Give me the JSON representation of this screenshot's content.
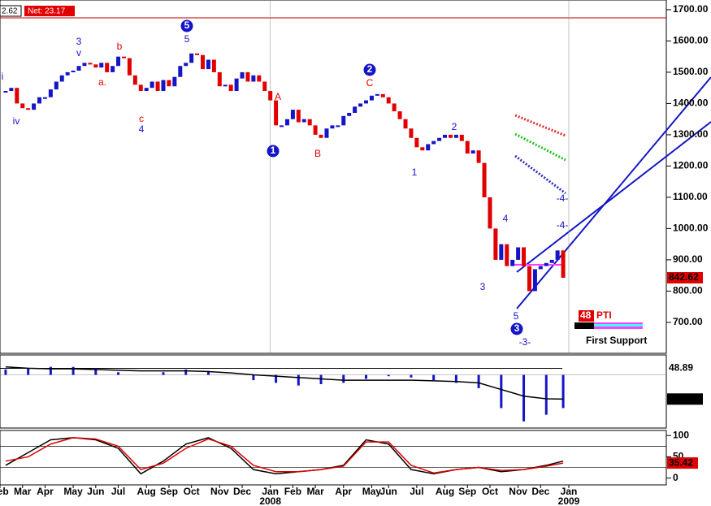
{
  "header": {
    "left": "2.62",
    "net": "Net: 23.17"
  },
  "chart_data": [
    {
      "type": "price-bars",
      "values": [
        1440,
        1450,
        1400,
        1385,
        1380,
        1400,
        1420,
        1420,
        1445,
        1470,
        1490,
        1500,
        1505,
        1520,
        1530,
        1525,
        1515,
        1530,
        1500,
        1520,
        1550,
        1545,
        1490,
        1460,
        1440,
        1450,
        1470,
        1440,
        1475,
        1455,
        1485,
        1520,
        1530,
        1560,
        1555,
        1510,
        1540,
        1500,
        1455,
        1460,
        1440,
        1480,
        1500,
        1470,
        1490,
        1470,
        1440,
        1410,
        1330,
        1330,
        1350,
        1380,
        1340,
        1350,
        1330,
        1300,
        1290,
        1320,
        1330,
        1330,
        1360,
        1370,
        1390,
        1400,
        1410,
        1425,
        1430,
        1420,
        1400,
        1375,
        1350,
        1320,
        1290,
        1260,
        1250,
        1270,
        1280,
        1290,
        1300,
        1290,
        1300,
        1280,
        1240,
        1250,
        1210,
        1100,
        1000,
        900,
        950,
        880,
        900,
        940,
        880,
        800,
        870,
        880,
        890,
        900,
        930,
        842.62
      ],
      "up_color": "#1414c8",
      "down_color": "#e00000",
      "xlim": [
        -1,
        100
      ],
      "ylim": [
        601,
        1731
      ],
      "yticks": [
        {
          "value": 700,
          "label": "700.00"
        },
        {
          "value": 800,
          "label": "800.00"
        },
        {
          "value": 900,
          "label": "900.00"
        },
        {
          "value": 1000,
          "label": "1000.00"
        },
        {
          "value": 1100,
          "label": "1100.00"
        },
        {
          "value": 1200,
          "label": "1200.00"
        },
        {
          "value": 1300,
          "label": "1300.00"
        },
        {
          "value": 1400,
          "label": "1400.00"
        },
        {
          "value": 1500,
          "label": "1500.00"
        },
        {
          "value": 1600,
          "label": "1600.00"
        },
        {
          "value": 1700,
          "label": "1700.00"
        }
      ],
      "xticks": [
        {
          "value": -1,
          "label": "Feb"
        },
        {
          "value": 3,
          "label": "Mar"
        },
        {
          "value": 7,
          "label": "Apr"
        },
        {
          "value": 12,
          "label": "May"
        },
        {
          "value": 16,
          "label": "Jun"
        },
        {
          "value": 20,
          "label": "Jul"
        },
        {
          "value": 25,
          "label": "Aug"
        },
        {
          "value": 29,
          "label": "Sep"
        },
        {
          "value": 33,
          "label": "Oct"
        },
        {
          "value": 38,
          "label": "Nov"
        },
        {
          "value": 42,
          "label": "Dec"
        },
        {
          "value": 47,
          "label": "Jan"
        },
        {
          "value": 51,
          "label": "Feb"
        },
        {
          "value": 55,
          "label": "Mar"
        },
        {
          "value": 60,
          "label": "Apr"
        },
        {
          "value": 65,
          "label": "May"
        },
        {
          "value": 68,
          "label": "Jun"
        },
        {
          "value": 73,
          "label": "Jul"
        },
        {
          "value": 78,
          "label": "Aug"
        },
        {
          "value": 82,
          "label": "Sep"
        },
        {
          "value": 86,
          "label": "Oct"
        },
        {
          "value": 91,
          "label": "Nov"
        },
        {
          "value": 95,
          "label": "Dec"
        },
        {
          "value": 100,
          "label": "Jan"
        }
      ],
      "year_ticks": [
        {
          "value": 47,
          "label": "2008"
        },
        {
          "value": 100,
          "label": "2009"
        }
      ],
      "last_price": 842.62,
      "annotations": [
        "i",
        "iv",
        "3",
        "v",
        "a.",
        "b",
        "c",
        "4",
        "5",
        "5",
        "A",
        "1",
        "B",
        "2",
        "C",
        "1",
        "2",
        "3",
        "4",
        "5",
        "3",
        "-3-",
        "-4-",
        "-4-"
      ]
    },
    {
      "type": "histogram",
      "x": [
        0,
        4,
        8,
        12,
        16,
        20,
        24,
        28,
        32,
        36,
        40,
        44,
        48,
        52,
        56,
        60,
        64,
        68,
        72,
        76,
        80,
        84,
        88,
        92,
        96,
        99
      ],
      "values": [
        40,
        50,
        60,
        60,
        50,
        20,
        0,
        20,
        40,
        30,
        0,
        -40,
        -60,
        -80,
        -70,
        -60,
        -30,
        -10,
        -20,
        -40,
        -60,
        -100,
        -250,
        -350,
        -300,
        -250
      ],
      "signal": [
        60,
        50,
        45,
        45,
        40,
        35,
        30,
        30,
        30,
        25,
        15,
        0,
        -10,
        -20,
        -30,
        -40,
        -40,
        -40,
        -40,
        -45,
        -50,
        -60,
        -110,
        -160,
        -180,
        -181.97
      ],
      "color": "#1414c8",
      "signal_color": "#000000",
      "xlim": [
        -1,
        100
      ],
      "ylim": [
        -400,
        150
      ],
      "level": 48.89,
      "signal_last": -181.97
    },
    {
      "type": "line",
      "x": [
        0,
        4,
        8,
        12,
        16,
        20,
        24,
        28,
        32,
        36,
        40,
        44,
        48,
        52,
        56,
        60,
        64,
        68,
        72,
        76,
        80,
        84,
        88,
        92,
        96,
        99
      ],
      "series": [
        {
          "color": "#000000",
          "values": [
            30,
            60,
            90,
            95,
            90,
            70,
            10,
            40,
            80,
            95,
            70,
            20,
            10,
            15,
            20,
            30,
            90,
            80,
            20,
            10,
            20,
            25,
            15,
            20,
            30,
            40
          ]
        },
        {
          "color": "#e00000",
          "values": [
            40,
            50,
            80,
            95,
            92,
            75,
            20,
            35,
            70,
            92,
            75,
            30,
            15,
            15,
            20,
            28,
            85,
            85,
            30,
            12,
            20,
            25,
            18,
            20,
            28,
            35.42
          ]
        }
      ],
      "xlim": [
        -1,
        100
      ],
      "ylim": [
        -16,
        112
      ],
      "yticks": [
        0,
        50,
        100
      ],
      "levels": [
        75,
        25
      ],
      "last_value": 35.42
    }
  ],
  "pti": {
    "value": "48",
    "label": "PTI",
    "support": "First Support"
  }
}
